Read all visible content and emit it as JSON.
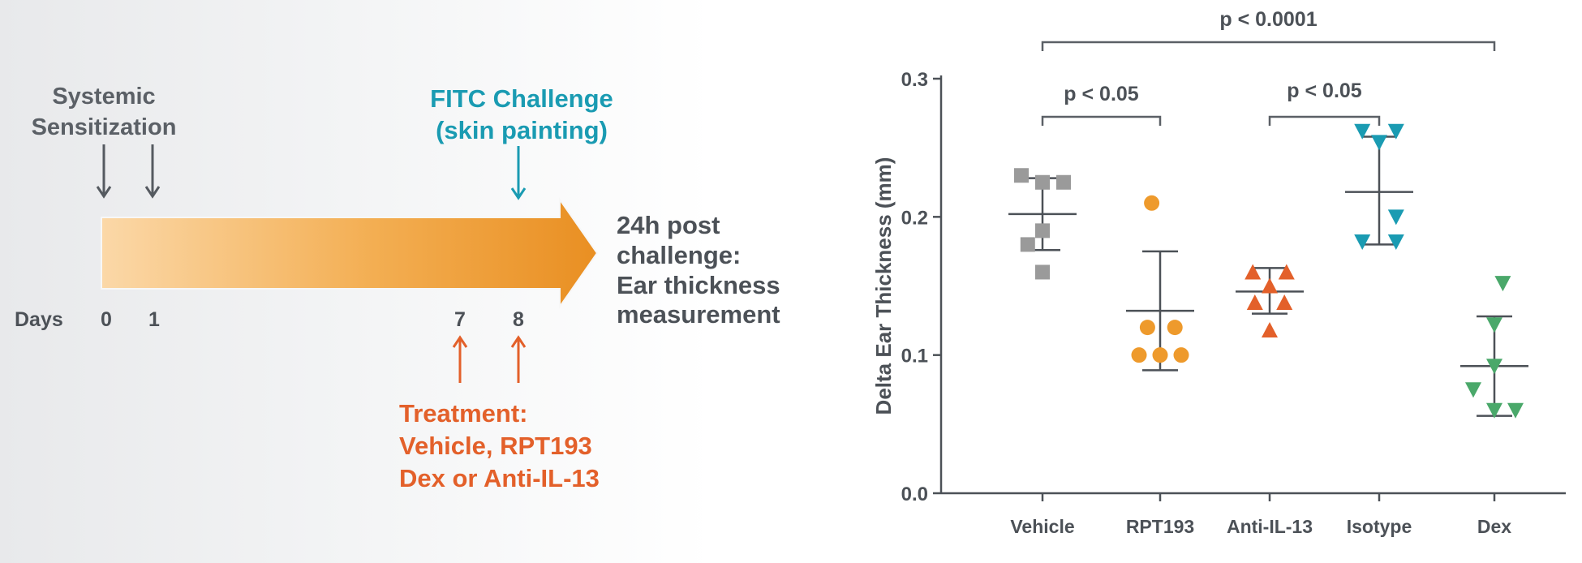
{
  "timeline": {
    "sensitization_label_line1": "Systemic",
    "sensitization_label_line2": "Sensitization",
    "challenge_label_line1": "FITC Challenge",
    "challenge_label_line2": "(skin painting)",
    "outcome_line1": "24h post",
    "outcome_line2": "challenge:",
    "outcome_line3": "Ear thickness",
    "outcome_line4": "measurement",
    "days_label": "Days",
    "day_ticks": [
      "0",
      "1",
      "7",
      "8"
    ],
    "treatment_line1": "Treatment:",
    "treatment_line2": "Vehicle, RPT193",
    "treatment_line3": "Dex or Anti-IL-13",
    "colors": {
      "challenge": "#1a9bb2",
      "treatment": "#e3602a",
      "arrow_dark": "#555a60",
      "arrow_fill": "#ee9a2c"
    }
  },
  "chart_data": {
    "type": "scatter",
    "ylabel": "Delta Ear Thickness (mm)",
    "xlabel": "",
    "ylim": [
      0,
      0.3
    ],
    "yticks": [
      "0.0",
      "0.1",
      "0.2",
      "0.3"
    ],
    "categories": [
      "Vehicle",
      "RPT193",
      "Anti-IL-13",
      "Isotype",
      "Dex"
    ],
    "series": [
      {
        "category": "Vehicle",
        "marker": "square",
        "color": "#9a9a9a",
        "points": [
          [
            -0.5,
            0.23
          ],
          [
            0.0,
            0.225
          ],
          [
            0.5,
            0.225
          ],
          [
            0.0,
            0.19
          ],
          [
            -0.35,
            0.18
          ],
          [
            0.0,
            0.16
          ]
        ],
        "mean": 0.202,
        "sd": [
          0.176,
          0.228
        ]
      },
      {
        "category": "RPT193",
        "marker": "circle",
        "color": "#ee9a2c",
        "points": [
          [
            -0.2,
            0.21
          ],
          [
            -0.3,
            0.12
          ],
          [
            0.35,
            0.12
          ],
          [
            -0.5,
            0.1
          ],
          [
            0.0,
            0.1
          ],
          [
            0.5,
            0.1
          ]
        ],
        "mean": 0.132,
        "sd": [
          0.089,
          0.175
        ]
      },
      {
        "category": "Anti-IL-13",
        "marker": "triangle-up",
        "color": "#e3602a",
        "points": [
          [
            -0.4,
            0.16
          ],
          [
            0.4,
            0.16
          ],
          [
            0.0,
            0.15
          ],
          [
            -0.35,
            0.138
          ],
          [
            0.35,
            0.138
          ],
          [
            0.0,
            0.118
          ]
        ],
        "mean": 0.146,
        "sd": [
          0.13,
          0.163
        ]
      },
      {
        "category": "Isotype",
        "marker": "triangle-down",
        "color": "#1a9bb2",
        "points": [
          [
            -0.4,
            0.262
          ],
          [
            0.4,
            0.262
          ],
          [
            0.0,
            0.254
          ],
          [
            0.4,
            0.2
          ],
          [
            -0.4,
            0.182
          ],
          [
            0.4,
            0.182
          ]
        ],
        "mean": 0.218,
        "sd": [
          0.18,
          0.258
        ]
      },
      {
        "category": "Dex",
        "marker": "triangle-down",
        "color": "#4aa86a",
        "points": [
          [
            0.2,
            0.152
          ],
          [
            0.0,
            0.122
          ],
          [
            0.0,
            0.092
          ],
          [
            -0.5,
            0.075
          ],
          [
            0.0,
            0.06
          ],
          [
            0.5,
            0.06
          ]
        ],
        "mean": 0.092,
        "sd": [
          0.056,
          0.128
        ]
      }
    ],
    "comparisons": [
      {
        "label": "p < 0.0001",
        "from": "Vehicle",
        "to": "Dex"
      },
      {
        "label": "p < 0.05",
        "from": "Vehicle",
        "to": "RPT193"
      },
      {
        "label": "p < 0.05",
        "from": "Anti-IL-13",
        "to": "Isotype"
      }
    ]
  }
}
